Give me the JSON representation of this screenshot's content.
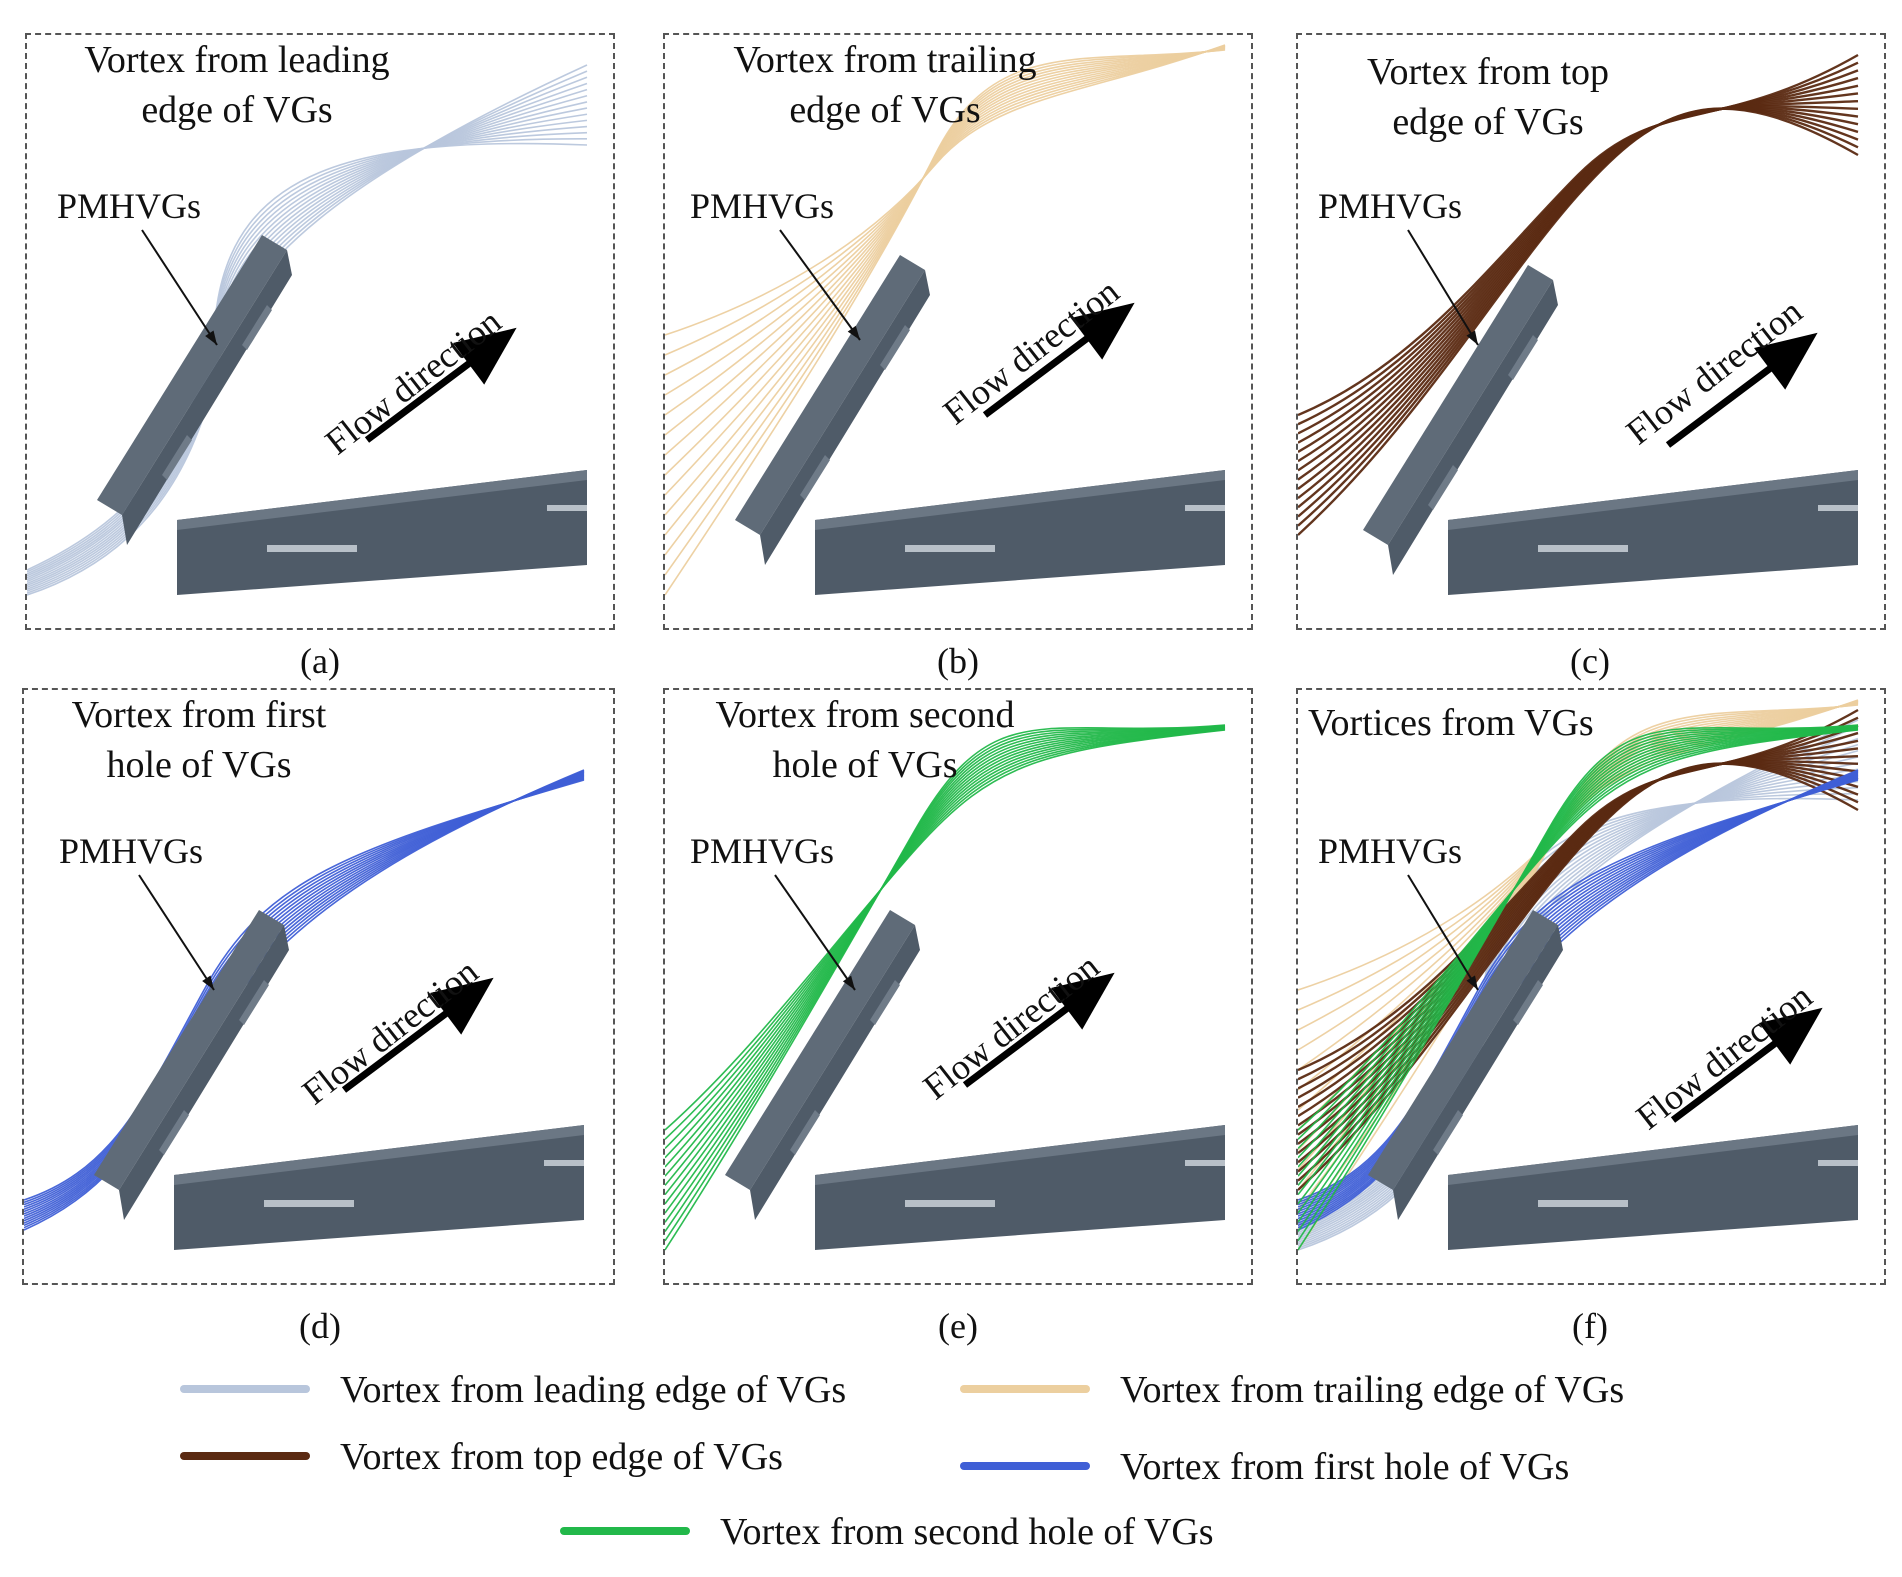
{
  "colors": {
    "leading": "#b8c6dc",
    "trailing": "#eccf9f",
    "top": "#5b2a12",
    "first_hole": "#3f5fd6",
    "second_hole": "#22b84a",
    "vg_body": "#4f5b68",
    "vg_face": "#5f6b78"
  },
  "common": {
    "vg_label": "PMHVGs",
    "flow_label": "Flow direction"
  },
  "panels": [
    {
      "id": "a",
      "caption": "(a)",
      "title_line1": "Vortex from leading",
      "title_line2": "edge of VGs",
      "streams": [
        "leading"
      ]
    },
    {
      "id": "b",
      "caption": "(b)",
      "title_line1": "Vortex from trailing",
      "title_line2": "edge of VGs",
      "streams": [
        "trailing"
      ]
    },
    {
      "id": "c",
      "caption": "(c)",
      "title_line1": "Vortex from top",
      "title_line2": "edge of VGs",
      "streams": [
        "top"
      ]
    },
    {
      "id": "d",
      "caption": "(d)",
      "title_line1": "Vortex from first",
      "title_line2": "hole of VGs",
      "streams": [
        "first_hole"
      ]
    },
    {
      "id": "e",
      "caption": "(e)",
      "title_line1": "Vortex from second",
      "title_line2": "hole of VGs",
      "streams": [
        "second_hole"
      ]
    },
    {
      "id": "f",
      "caption": "(f)",
      "title_line1": "Vortices from VGs",
      "title_line2": "",
      "streams": [
        "leading",
        "trailing",
        "top",
        "first_hole",
        "second_hole"
      ]
    }
  ],
  "legend": [
    {
      "key": "leading",
      "label": "Vortex from leading edge of VGs"
    },
    {
      "key": "trailing",
      "label": "Vortex from trailing edge of VGs"
    },
    {
      "key": "top",
      "label": "Vortex from top edge of VGs"
    },
    {
      "key": "first_hole",
      "label": "Vortex from first hole of VGs"
    },
    {
      "key": "second_hole",
      "label": "Vortex from second hole of VGs"
    }
  ]
}
